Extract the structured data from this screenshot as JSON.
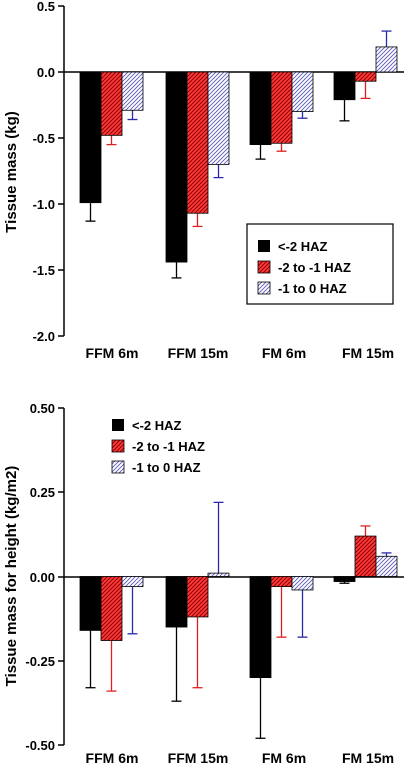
{
  "series_style": [
    {
      "fill": "#000000",
      "pattern": "solid",
      "error_color": "#000000"
    },
    {
      "fill": "#ff3b3b",
      "pattern": "red-hatch",
      "error_color": "#e02020"
    },
    {
      "fill": "#ffffff",
      "pattern": "blue-hatch",
      "error_color": "#2a2aaa"
    }
  ],
  "chart_data": [
    {
      "type": "bar",
      "ylabel": "Tissue mass (kg)",
      "categories": [
        "FFM 6m",
        "FFM 15m",
        "FM 6m",
        "FM 15m"
      ],
      "ylim": [
        -2.0,
        0.5
      ],
      "yticks": [
        "0.5",
        "0.0",
        "-0.5",
        "-1.0",
        "-1.5",
        "-2.0"
      ],
      "legend_position": "lower-right",
      "series": [
        {
          "name": "<-2 HAZ",
          "values": [
            -0.99,
            -1.44,
            -0.55,
            -0.21
          ],
          "error": [
            0.14,
            0.12,
            0.11,
            0.16
          ]
        },
        {
          "name": "-2 to -1 HAZ",
          "values": [
            -0.48,
            -1.07,
            -0.54,
            -0.07
          ],
          "error": [
            0.07,
            0.1,
            0.06,
            0.13
          ]
        },
        {
          "name": "-1 to 0 HAZ",
          "values": [
            -0.29,
            -0.7,
            -0.3,
            0.19
          ],
          "error": [
            0.07,
            0.1,
            0.05,
            0.12
          ]
        }
      ]
    },
    {
      "type": "bar",
      "ylabel": "Tissue mass for height (kg/m2)",
      "categories": [
        "FFM 6m",
        "FFM 15m",
        "FM 6m",
        "FM 15m"
      ],
      "ylim": [
        -0.5,
        0.5
      ],
      "yticks": [
        "0.50",
        "0.25",
        "0.00",
        "-0.25",
        "-0.50"
      ],
      "legend_position": "upper-left",
      "series": [
        {
          "name": "<-2 HAZ",
          "values": [
            -0.16,
            -0.15,
            -0.3,
            -0.015
          ],
          "error": [
            0.17,
            0.22,
            0.18,
            0.005
          ]
        },
        {
          "name": "-2 to -1 HAZ",
          "values": [
            -0.19,
            -0.12,
            -0.03,
            0.12
          ],
          "error": [
            0.15,
            0.21,
            0.15,
            0.03
          ]
        },
        {
          "name": "-1 to 0 HAZ",
          "values": [
            -0.03,
            0.01,
            -0.04,
            0.06
          ],
          "error": [
            0.14,
            0.21,
            0.14,
            0.01
          ]
        }
      ]
    }
  ]
}
